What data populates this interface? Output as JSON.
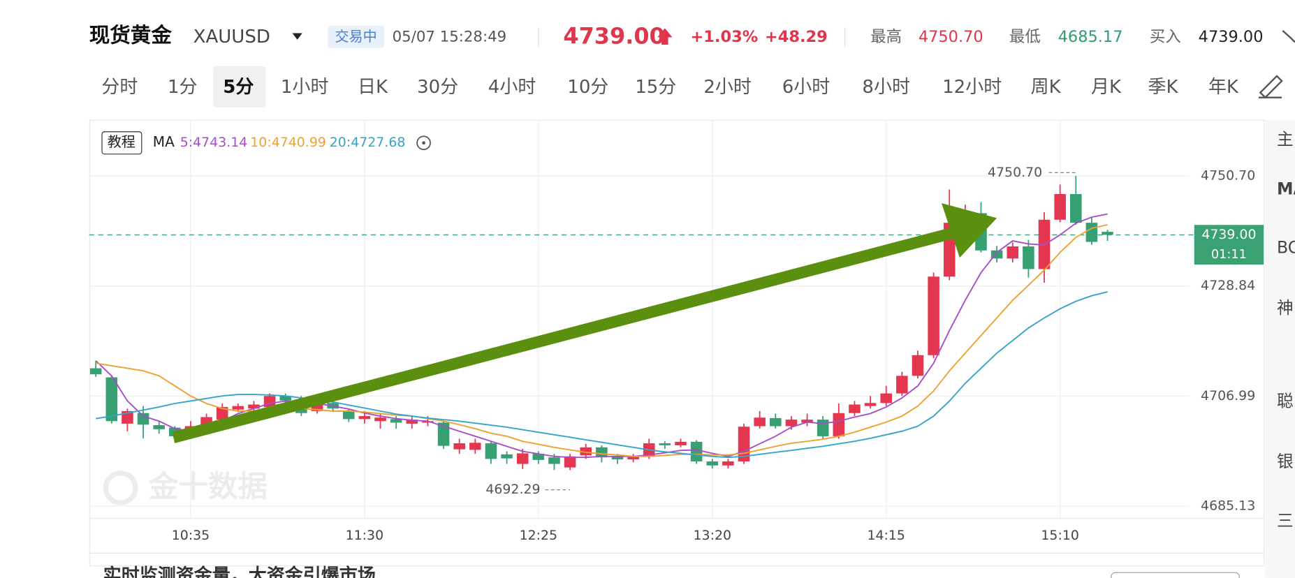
{
  "header": {
    "name": "现货黄金",
    "symbol": "XAUUSD",
    "status": "交易中",
    "time": "05/07 15:28:49",
    "price": "4739.00",
    "change_pct": "+1.03%",
    "change": "+48.29",
    "high_label": "最高",
    "high": "4750.70",
    "low_label": "最低",
    "low": "4685.17",
    "buy_label": "买入",
    "buy": "4739.00"
  },
  "tabs": [
    "分时",
    "1分",
    "5分",
    "1小时",
    "日K",
    "30分",
    "4小时",
    "10分",
    "15分",
    "2小时",
    "6小时",
    "8小时",
    "12小时",
    "周K",
    "月K",
    "季K",
    "年K"
  ],
  "active_tab": "5分",
  "tutorial": "教程",
  "watermark": "金十数据",
  "side_panel": [
    "主",
    "MA",
    "BO",
    "神",
    "聪",
    "银",
    "三"
  ],
  "banner": "实时监测资金量，大资金引爆市场",
  "chart_data": {
    "type": "candlestick",
    "legend_title": "MA",
    "categories": [
      null,
      null,
      null,
      null,
      null,
      null,
      "10:35",
      null,
      null,
      null,
      null,
      null,
      null,
      null,
      null,
      null,
      null,
      "11:30",
      null,
      null,
      null,
      null,
      null,
      null,
      null,
      null,
      null,
      null,
      "12:25",
      null,
      null,
      null,
      null,
      null,
      null,
      null,
      null,
      null,
      null,
      "13:20",
      null,
      null,
      null,
      null,
      null,
      null,
      null,
      null,
      null,
      null,
      "14:15",
      null,
      null,
      null,
      null,
      null,
      null,
      null,
      null,
      null,
      null,
      "15:10",
      null,
      null,
      null
    ],
    "ohlc": {
      "up_color": "#e5364f",
      "down_color": "#36a072",
      "open": [
        4712.5,
        4710.7,
        4701.5,
        4703.6,
        4701.2,
        4700.7,
        4700,
        4701.2,
        4702.3,
        4704.3,
        4704.5,
        4704.8,
        4707,
        4706.3,
        4704,
        4705.6,
        4704,
        4702.4,
        4702,
        4702.4,
        4701.5,
        4701.7,
        4701.7,
        4696.4,
        4696.3,
        4697.6,
        4695.4,
        4693.5,
        4695.5,
        4694.8,
        4692.8,
        4695.2,
        4696.8,
        4694.9,
        4694.4,
        4694.9,
        4697.6,
        4697.2,
        4697.9,
        4694,
        4693.2,
        4694,
        4701,
        4702.6,
        4701,
        4701.7,
        4702.3,
        4699,
        4703.6,
        4705,
        4705.6,
        4707.5,
        4711,
        4715.1,
        4730.7,
        4740.5,
        4743.3,
        4735.9,
        4734.3,
        4736.7,
        4732.2,
        4742,
        4747.1,
        4741.4,
        4739.6
      ],
      "high": [
        4714,
        4711,
        4704.5,
        4705,
        4702,
        4701,
        4702,
        4703.5,
        4705.5,
        4705.5,
        4706,
        4707.5,
        4707.5,
        4707,
        4706,
        4706.5,
        4704.5,
        4704,
        4703.5,
        4703,
        4703,
        4703,
        4702,
        4698.5,
        4698.5,
        4698,
        4696,
        4696.5,
        4696,
        4695.5,
        4695.5,
        4697.5,
        4697.2,
        4695.5,
        4695.5,
        4698.5,
        4698,
        4698.5,
        4698.2,
        4694.5,
        4694.5,
        4701.5,
        4704,
        4703.5,
        4703,
        4703.5,
        4703,
        4705.5,
        4706,
        4707,
        4709,
        4711.8,
        4716,
        4731.5,
        4748,
        4745,
        4745.5,
        4736.8,
        4737.5,
        4738,
        4743.5,
        4749,
        4750.7,
        4742.5,
        4740
      ],
      "low": [
        4710.8,
        4701.5,
        4700,
        4698.6,
        4699.5,
        4697.8,
        4699,
        4700.5,
        4701.5,
        4703.8,
        4704,
        4704,
        4705.5,
        4703,
        4703.5,
        4703.8,
        4701.8,
        4701.5,
        4700.5,
        4700.5,
        4700.5,
        4701,
        4696.5,
        4695.5,
        4695.5,
        4693.5,
        4693.5,
        4692.5,
        4693.5,
        4692.3,
        4692.29,
        4694.5,
        4693.8,
        4693.5,
        4693.8,
        4694.5,
        4696.5,
        4696.8,
        4693.5,
        4692.6,
        4692.6,
        4693.5,
        4700.5,
        4700.5,
        4700.3,
        4701,
        4698.5,
        4698.5,
        4703,
        4704.5,
        4705,
        4707,
        4710.5,
        4714.5,
        4730,
        4740,
        4735.5,
        4733.5,
        4733.5,
        4730.5,
        4729.5,
        4741.5,
        4741,
        4737,
        4737.8
      ],
      "close": [
        4711.3,
        4702,
        4704,
        4701.3,
        4700.4,
        4699,
        4701,
        4702.8,
        4704.8,
        4705,
        4705.3,
        4707,
        4706.1,
        4703.6,
        4705.6,
        4704.5,
        4702.4,
        4703,
        4702.7,
        4701.7,
        4702.3,
        4702,
        4697.1,
        4697.6,
        4697.7,
        4694.5,
        4694.6,
        4695.6,
        4694.3,
        4693.5,
        4695,
        4696.8,
        4694.8,
        4694.4,
        4694.9,
        4697.6,
        4697.2,
        4697.9,
        4694,
        4693.2,
        4694,
        4700.9,
        4702.7,
        4701,
        4702.3,
        4702.3,
        4699,
        4703.6,
        4705.3,
        4705.6,
        4707.5,
        4711,
        4715.1,
        4730.7,
        4741.4,
        4743.3,
        4735.9,
        4734.3,
        4736.7,
        4732.2,
        4742,
        4747.1,
        4741.4,
        4737.6,
        4739
      ]
    },
    "series": [
      {
        "name": "5:4743.14",
        "color": "#a64dc8",
        "values": [
          4714,
          4711,
          4706,
          4703,
          4702,
          4700.5,
          4700,
          4701,
          4702,
          4703.5,
          4704.5,
          4705.5,
          4706,
          4705.8,
          4705.5,
          4705,
          4704.4,
          4703.6,
          4703,
          4702.5,
          4702.2,
          4702,
          4701,
          4700,
          4699,
          4698,
          4697,
          4696,
          4695.5,
          4695,
          4694.8,
          4694.8,
          4695,
          4695,
          4695,
          4695.3,
          4695.7,
          4696.2,
          4696.3,
          4695.6,
          4695,
          4696,
          4697.5,
          4699,
          4700.8,
          4701.8,
          4701.5,
          4702,
          4702.8,
          4703.5,
          4704.8,
          4706.6,
          4709,
          4713.5,
          4720,
          4726,
          4731.5,
          4735.5,
          4737.8,
          4737.2,
          4737,
          4739,
          4741.3,
          4742.5,
          4743.14
        ]
      },
      {
        "name": "10:4740.99",
        "color": "#f0a030",
        "values": [
          4713.5,
          4713,
          4712.5,
          4712,
          4711,
          4709,
          4707,
          4705.5,
          4704.5,
          4704,
          4704,
          4704.3,
          4704.5,
          4704.5,
          4704.3,
          4704,
          4704,
          4703.8,
          4703.5,
          4703.2,
          4703,
          4702.5,
          4702,
          4701.3,
          4700.5,
          4699.6,
          4699,
          4698,
          4697.4,
          4696.8,
          4696.3,
          4695.8,
          4695.5,
          4695.3,
          4695,
          4695,
          4695.2,
          4695.4,
          4695.4,
          4695.3,
          4695.3,
          4695.6,
          4696.3,
          4697,
          4697.6,
          4698,
          4698.4,
          4699,
          4699.8,
          4700.8,
          4701.8,
          4703,
          4705,
          4708,
          4712,
          4715.5,
          4719,
          4722.5,
          4726,
          4729,
          4732,
          4735.5,
          4738.5,
          4740.3,
          4740.99
        ]
      },
      {
        "name": "20:4727.68",
        "color": "#33a5c9",
        "values": [
          4702.5,
          4703,
          4703.6,
          4704.2,
          4704.8,
          4705.5,
          4706,
          4706.5,
          4707,
          4707.3,
          4707.3,
          4707.2,
          4707,
          4706.6,
          4706.2,
          4705.8,
          4705.2,
          4704.6,
          4704,
          4703.4,
          4703,
          4702.6,
          4702.3,
          4702,
          4701.6,
          4701.2,
          4700.8,
          4700.3,
          4699.8,
          4699.3,
          4698.8,
          4698.3,
          4697.8,
          4697.3,
          4696.8,
          4696.3,
          4695.9,
          4695.6,
          4695.3,
          4695,
          4694.8,
          4695,
          4695.4,
          4695.8,
          4696.2,
          4696.6,
          4697,
          4697.5,
          4698,
          4698.6,
          4699.3,
          4700,
          4701,
          4703,
          4706,
          4709.5,
          4712.5,
          4715.5,
          4718,
          4720.5,
          4722.5,
          4724.3,
          4725.8,
          4726.9,
          4727.68
        ]
      }
    ],
    "ylim": [
      4682.67,
      4761.52
    ],
    "yticks": [
      {
        "value": 4750.7,
        "label": "4750.70"
      },
      4728.84,
      4706.99,
      4685.13
    ],
    "grid": true,
    "current_price": {
      "value": 4739,
      "label": "4739.00",
      "countdown": "01:11",
      "color": "#3aa173"
    },
    "high_marker": {
      "value": 4750.7,
      "label": "4750.70"
    },
    "low_marker": 4692.29
  }
}
